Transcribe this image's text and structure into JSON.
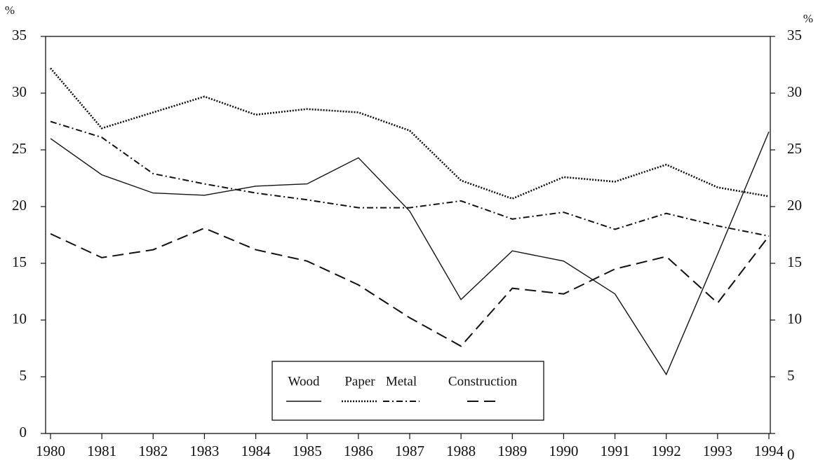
{
  "chart_data": {
    "type": "line",
    "categories": [
      "1980",
      "1981",
      "1982",
      "1983",
      "1984",
      "1985",
      "1986",
      "1987",
      "1988",
      "1989",
      "1990",
      "1991",
      "1992",
      "1993",
      "1994"
    ],
    "y_unit": "%",
    "ylim": [
      0,
      35
    ],
    "yticks": [
      0,
      5,
      10,
      15,
      20,
      25,
      30,
      35
    ],
    "y2lim": [
      0,
      35
    ],
    "y2ticks": [
      0,
      5,
      10,
      15,
      20,
      25,
      30,
      35
    ],
    "series": [
      {
        "name": "Wood",
        "color": "#111111",
        "dash": "solid",
        "values": [
          26.0,
          22.8,
          21.2,
          21.0,
          21.8,
          22.0,
          24.3,
          19.6,
          11.8,
          16.1,
          15.2,
          12.3,
          5.2,
          15.8,
          26.6
        ]
      },
      {
        "name": "Paper",
        "color": "#111111",
        "dash": "dotted",
        "values": [
          32.2,
          26.9,
          28.3,
          29.7,
          28.1,
          28.6,
          28.3,
          26.7,
          22.3,
          20.7,
          22.6,
          22.2,
          23.7,
          21.7,
          20.9
        ]
      },
      {
        "name": "Metal",
        "color": "#111111",
        "dash": "dashdot",
        "values": [
          27.5,
          26.1,
          22.9,
          22.0,
          21.2,
          20.6,
          19.9,
          19.9,
          20.5,
          18.9,
          19.5,
          18.0,
          19.4,
          18.3,
          17.4
        ]
      },
      {
        "name": "Construction",
        "color": "#111111",
        "dash": "dashed",
        "values": [
          17.6,
          15.5,
          16.2,
          18.1,
          16.2,
          15.2,
          13.1,
          10.2,
          7.7,
          12.8,
          12.3,
          14.5,
          15.6,
          11.5,
          17.4
        ]
      }
    ],
    "legend": "bottom-center"
  }
}
